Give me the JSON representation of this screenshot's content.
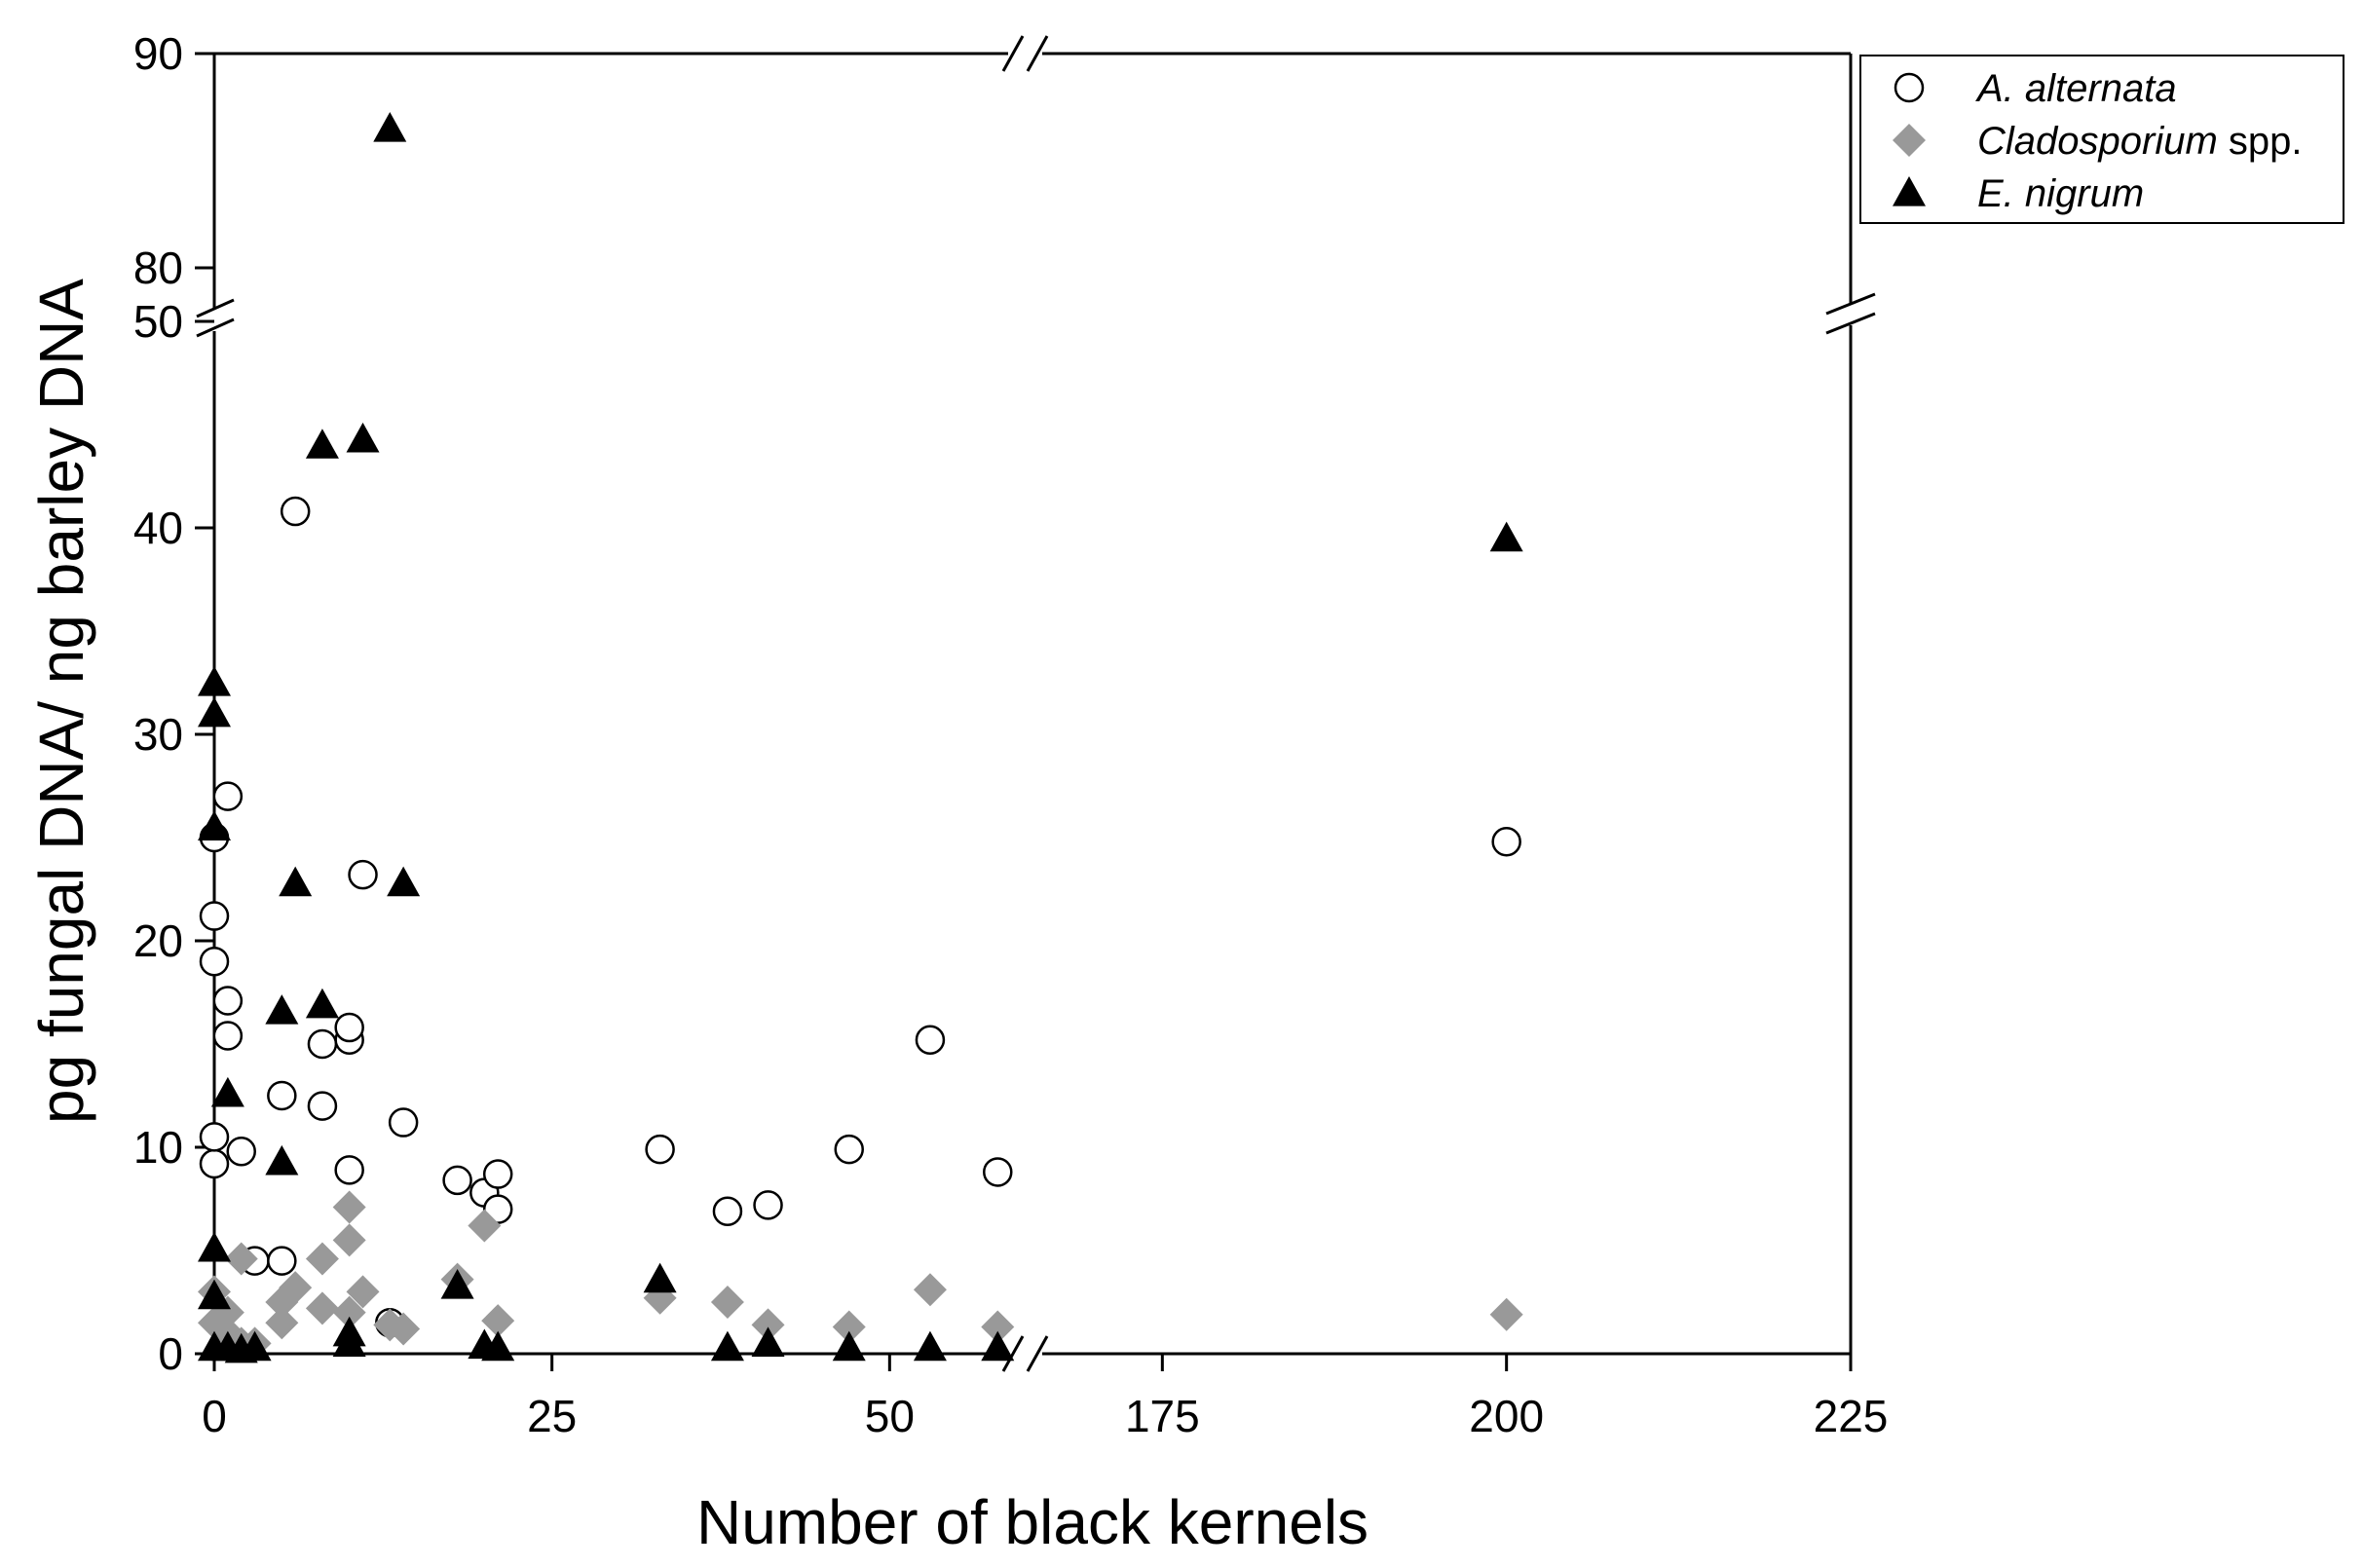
{
  "chart_data": {
    "type": "scatter",
    "title": "",
    "xlabel": "Number of black kernels",
    "ylabel": "pg fungal DNA/ ng barley DNA",
    "x_axis": {
      "broken": true,
      "segments": [
        {
          "range": [
            0,
            60
          ],
          "ticks": [
            0,
            25,
            50
          ],
          "tick_labels": [
            "0",
            "25",
            "50"
          ]
        },
        {
          "range": [
            165,
            225
          ],
          "ticks": [
            175,
            200,
            225
          ],
          "tick_labels": [
            "175",
            "200",
            "225"
          ]
        }
      ]
    },
    "y_axis": {
      "broken": true,
      "segments": [
        {
          "range": [
            0,
            50
          ],
          "ticks": [
            0,
            10,
            20,
            30,
            40,
            50
          ],
          "tick_labels": [
            "0",
            "10",
            "20",
            "30",
            "40",
            "50"
          ]
        },
        {
          "range": [
            77.5,
            90
          ],
          "ticks": [
            80,
            90
          ],
          "tick_labels": [
            "80",
            "90"
          ]
        }
      ]
    },
    "grid": false,
    "legend_position": "top-right outside",
    "series": [
      {
        "name": "A. alternata",
        "name_suffix": "",
        "marker": "circle-open",
        "color": "#000000",
        "points": [
          [
            0,
            9.2
          ],
          [
            0,
            10.5
          ],
          [
            0,
            19
          ],
          [
            0,
            21.2
          ],
          [
            0,
            25
          ],
          [
            1,
            15.4
          ],
          [
            1,
            17.1
          ],
          [
            1,
            27
          ],
          [
            2,
            9.8
          ],
          [
            3,
            4.5
          ],
          [
            5,
            4.5
          ],
          [
            5,
            12.5
          ],
          [
            6,
            40.8
          ],
          [
            8,
            12
          ],
          [
            8,
            15
          ],
          [
            10,
            8.9
          ],
          [
            10,
            15.2
          ],
          [
            10,
            15.8
          ],
          [
            11,
            23.2
          ],
          [
            13,
            1.5
          ],
          [
            14,
            11.2
          ],
          [
            18,
            8.4
          ],
          [
            20,
            7.8
          ],
          [
            21,
            7
          ],
          [
            21,
            8.7
          ],
          [
            33,
            9.9
          ],
          [
            38,
            6.9
          ],
          [
            41,
            7.2
          ],
          [
            47,
            9.9
          ],
          [
            53,
            15.2
          ],
          [
            58,
            8.8
          ],
          [
            200,
            24.8
          ]
        ]
      },
      {
        "name": "Cladosporium",
        "name_suffix": " spp.",
        "marker": "diamond",
        "color": "#999999",
        "points": [
          [
            0,
            1.5
          ],
          [
            0,
            3
          ],
          [
            1,
            1
          ],
          [
            1,
            2
          ],
          [
            2,
            4.6
          ],
          [
            2,
            0.5
          ],
          [
            3,
            0.5
          ],
          [
            5,
            2.5
          ],
          [
            5,
            1.5
          ],
          [
            6,
            3.2
          ],
          [
            8,
            4.6
          ],
          [
            8,
            2.2
          ],
          [
            10,
            7.1
          ],
          [
            10,
            5.5
          ],
          [
            10,
            2
          ],
          [
            11,
            3
          ],
          [
            13,
            1.4
          ],
          [
            14,
            1.2
          ],
          [
            18,
            3.6
          ],
          [
            20,
            6.2
          ],
          [
            21,
            1.6
          ],
          [
            33,
            2.7
          ],
          [
            38,
            2.5
          ],
          [
            41,
            1.4
          ],
          [
            47,
            1.3
          ],
          [
            53,
            3.1
          ],
          [
            58,
            1.3
          ],
          [
            200,
            1.9
          ]
        ]
      },
      {
        "name": "E. nigrum",
        "name_suffix": "",
        "marker": "triangle",
        "color": "#000000",
        "points": [
          [
            0,
            0.3
          ],
          [
            0,
            2.8
          ],
          [
            0,
            5.1
          ],
          [
            0,
            25.5
          ],
          [
            0,
            31
          ],
          [
            0,
            32.5
          ],
          [
            1,
            0.3
          ],
          [
            1,
            12.6
          ],
          [
            2,
            0.2
          ],
          [
            3,
            0.3
          ],
          [
            5,
            9.3
          ],
          [
            5,
            16.6
          ],
          [
            6,
            22.8
          ],
          [
            8,
            16.9
          ],
          [
            8,
            44
          ],
          [
            10,
            0.5
          ],
          [
            10,
            1
          ],
          [
            11,
            44.3
          ],
          [
            13,
            86.5
          ],
          [
            14,
            22.8
          ],
          [
            18,
            3.3
          ],
          [
            20,
            0.4
          ],
          [
            21,
            0.3
          ],
          [
            33,
            3.6
          ],
          [
            38,
            0.3
          ],
          [
            41,
            0.5
          ],
          [
            47,
            0.3
          ],
          [
            53,
            0.3
          ],
          [
            58,
            0.3
          ],
          [
            200,
            39.5
          ]
        ]
      }
    ]
  }
}
